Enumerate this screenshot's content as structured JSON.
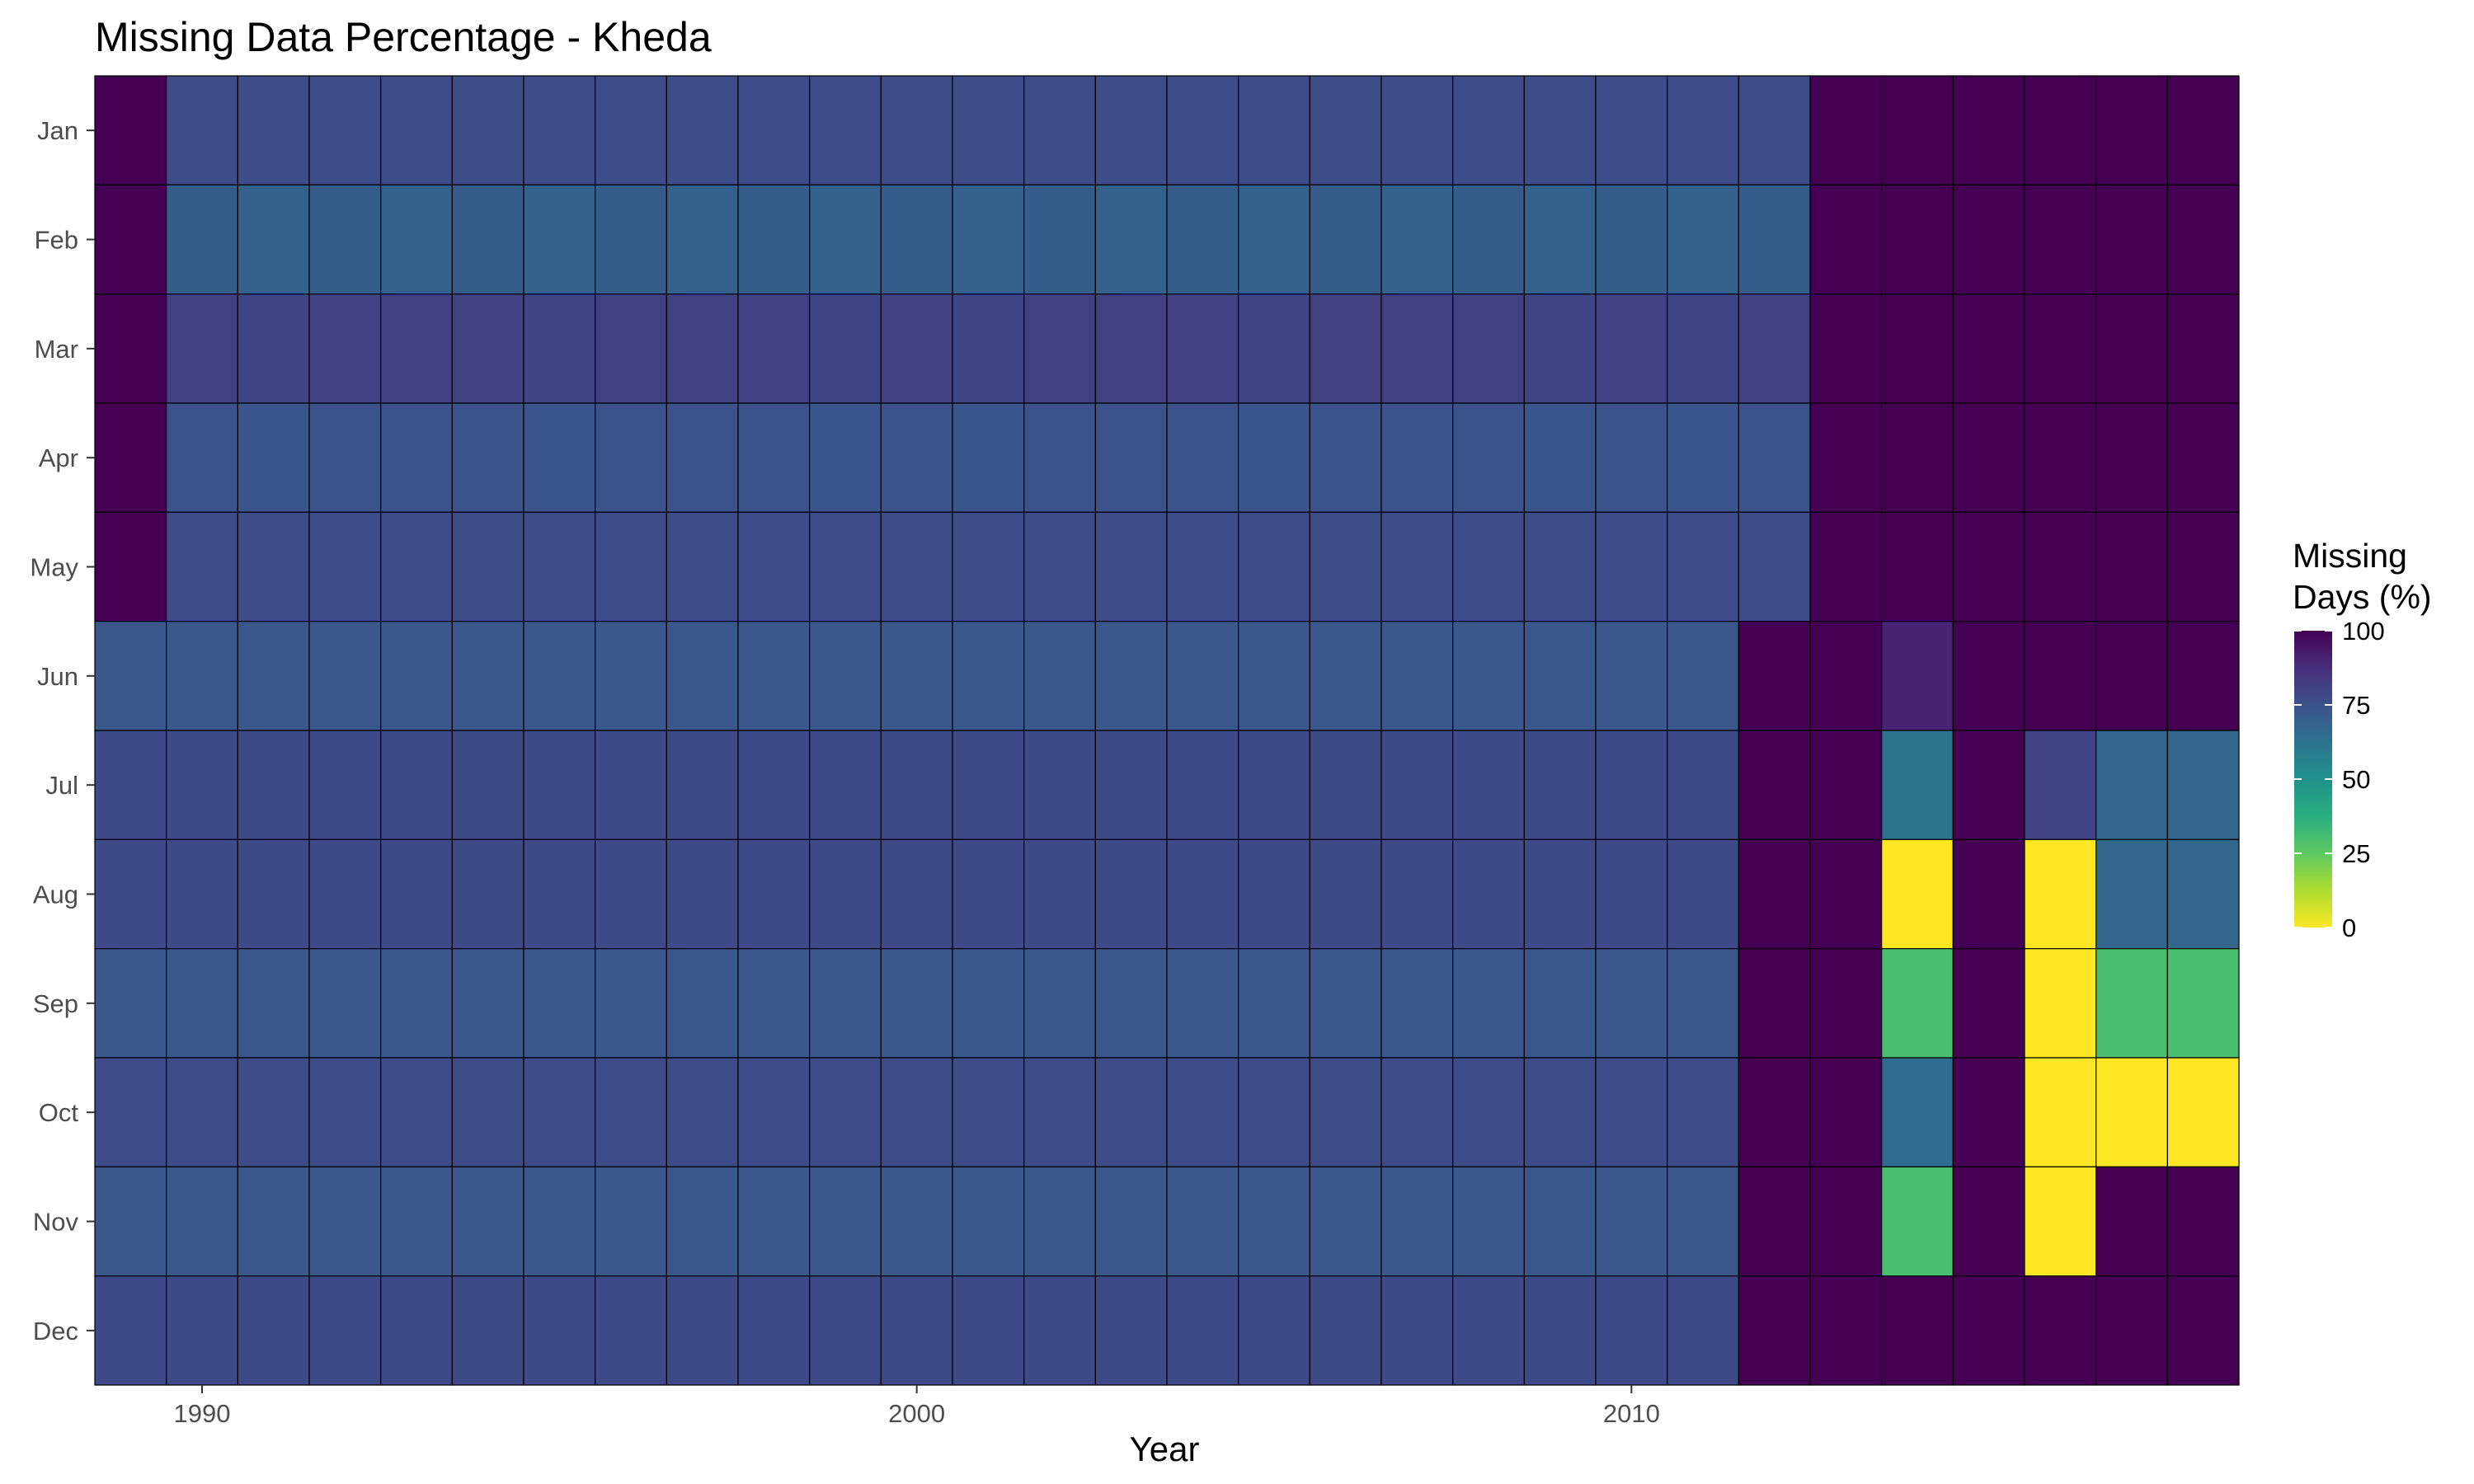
{
  "chart_data": {
    "type": "heatmap",
    "title": "Missing Data Percentage - Kheda",
    "xlabel": "Year",
    "ylabel": "",
    "x_tick_labels": [
      "1990",
      "2000",
      "2010"
    ],
    "x_ticks": [
      1990,
      2000,
      2010
    ],
    "years": [
      1989,
      1990,
      1991,
      1992,
      1993,
      1994,
      1995,
      1996,
      1997,
      1998,
      1999,
      2000,
      2001,
      2002,
      2003,
      2004,
      2005,
      2006,
      2007,
      2008,
      2009,
      2010,
      2011,
      2012,
      2013,
      2014,
      2015,
      2016,
      2017,
      2018
    ],
    "months": [
      "Jan",
      "Feb",
      "Mar",
      "Apr",
      "May",
      "Jun",
      "Jul",
      "Aug",
      "Sep",
      "Oct",
      "Nov",
      "Dec"
    ],
    "values": [
      [
        100,
        77,
        77,
        77,
        77,
        77,
        77,
        77,
        77,
        77,
        77,
        77,
        77,
        77,
        77,
        77,
        77,
        77,
        77,
        77,
        77,
        77,
        77,
        77,
        100,
        100,
        100,
        100,
        100,
        100
      ],
      [
        100,
        71,
        69,
        71,
        69,
        71,
        69,
        71,
        69,
        71,
        69,
        71,
        69,
        71,
        69,
        71,
        69,
        71,
        69,
        71,
        69,
        71,
        69,
        71,
        100,
        100,
        100,
        100,
        100,
        100
      ],
      [
        100,
        81,
        80,
        81,
        81,
        81,
        80,
        81,
        81,
        81,
        80,
        81,
        80,
        81,
        81,
        81,
        80,
        81,
        81,
        81,
        80,
        81,
        80,
        81,
        100,
        100,
        100,
        100,
        100,
        100
      ],
      [
        100,
        75,
        74,
        75,
        75,
        75,
        74,
        75,
        75,
        75,
        74,
        75,
        74,
        75,
        75,
        75,
        74,
        75,
        75,
        75,
        74,
        75,
        74,
        75,
        100,
        100,
        100,
        100,
        100,
        100
      ],
      [
        100,
        77,
        77,
        77,
        77,
        77,
        77,
        77,
        77,
        77,
        77,
        77,
        77,
        77,
        77,
        77,
        77,
        77,
        77,
        77,
        77,
        77,
        77,
        77,
        100,
        100,
        100,
        100,
        100,
        100
      ],
      [
        73,
        73,
        73,
        73,
        73,
        73,
        73,
        73,
        73,
        73,
        73,
        73,
        73,
        73,
        73,
        73,
        73,
        73,
        73,
        73,
        73,
        73,
        73,
        100,
        100,
        90,
        100,
        100,
        100,
        100
      ],
      [
        78,
        78,
        78,
        78,
        78,
        78,
        78,
        78,
        78,
        78,
        78,
        78,
        78,
        78,
        78,
        78,
        78,
        78,
        78,
        78,
        78,
        78,
        78,
        100,
        100,
        62,
        100,
        80,
        67,
        67
      ],
      [
        78,
        78,
        78,
        78,
        78,
        78,
        78,
        78,
        78,
        78,
        78,
        78,
        78,
        78,
        78,
        78,
        78,
        78,
        78,
        78,
        78,
        78,
        78,
        100,
        100,
        0,
        100,
        0,
        67,
        67
      ],
      [
        73,
        73,
        73,
        73,
        73,
        73,
        73,
        73,
        73,
        73,
        73,
        73,
        73,
        73,
        73,
        73,
        73,
        73,
        73,
        73,
        73,
        73,
        73,
        100,
        100,
        30,
        100,
        0,
        30,
        30
      ],
      [
        77,
        77,
        77,
        77,
        77,
        77,
        77,
        77,
        77,
        77,
        77,
        77,
        77,
        77,
        77,
        77,
        77,
        77,
        77,
        77,
        77,
        77,
        77,
        100,
        100,
        65,
        100,
        0,
        0,
        0
      ],
      [
        73,
        73,
        73,
        73,
        73,
        73,
        73,
        73,
        73,
        73,
        73,
        73,
        73,
        73,
        73,
        73,
        73,
        73,
        73,
        73,
        73,
        73,
        73,
        100,
        100,
        30,
        100,
        0,
        100,
        100
      ],
      [
        78,
        78,
        78,
        78,
        78,
        78,
        78,
        78,
        78,
        78,
        78,
        78,
        78,
        78,
        78,
        78,
        78,
        78,
        78,
        78,
        78,
        78,
        78,
        100,
        100,
        100,
        100,
        100,
        100,
        100
      ]
    ],
    "color_scale": "viridis-reversed",
    "value_range": [
      0,
      100
    ],
    "legend": {
      "title_line1": "Missing",
      "title_line2": "Days (%)",
      "tick_labels": [
        "100",
        "75",
        "50",
        "25",
        "0"
      ],
      "ticks": [
        100,
        75,
        50,
        25,
        0
      ],
      "placement": "right"
    },
    "grid": false,
    "cell_border_color": "#000000"
  }
}
